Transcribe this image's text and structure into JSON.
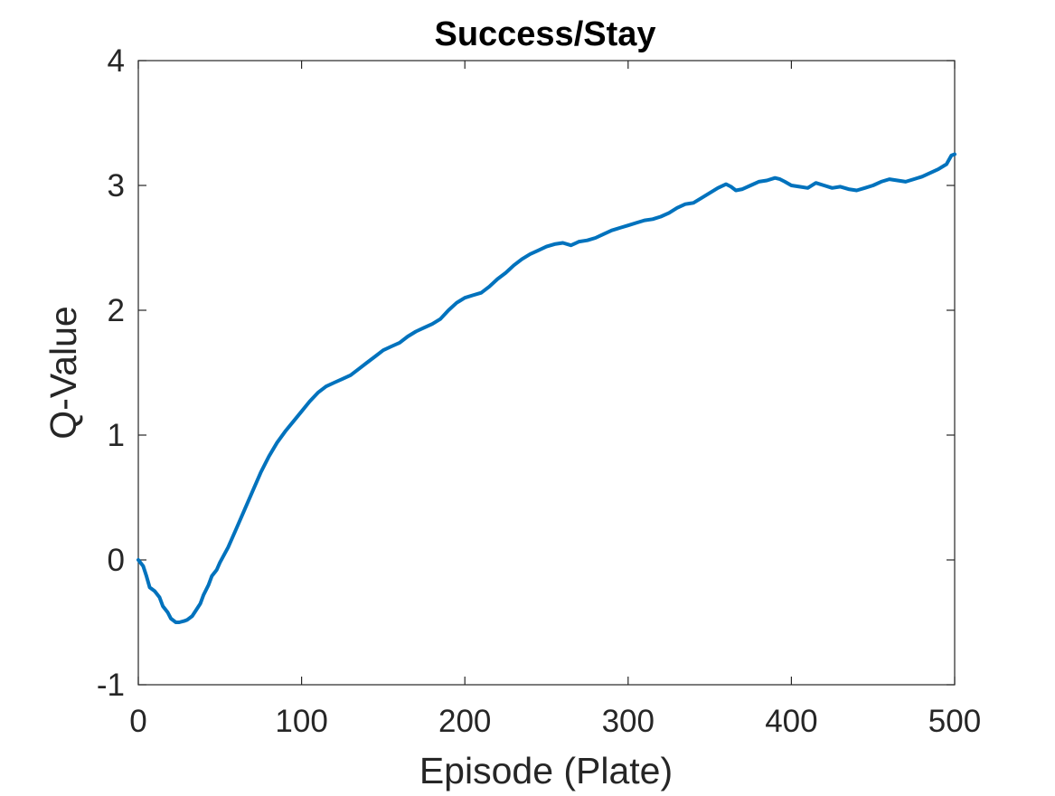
{
  "chart_data": {
    "type": "line",
    "title": "Success/Stay",
    "xlabel": "Episode (Plate)",
    "ylabel": "Q-Value",
    "xlim": [
      0,
      500
    ],
    "ylim": [
      -1,
      4
    ],
    "xticks": [
      0,
      100,
      200,
      300,
      400,
      500
    ],
    "yticks": [
      -1,
      0,
      1,
      2,
      3,
      4
    ],
    "xtick_labels": [
      "0",
      "100",
      "200",
      "300",
      "400",
      "500"
    ],
    "ytick_labels": [
      "-1",
      "0",
      "1",
      "2",
      "3",
      "4"
    ],
    "grid": false,
    "legend": "none",
    "series": [
      {
        "color": "#0072BD",
        "x": [
          0,
          3,
          5,
          7,
          10,
          13,
          15,
          18,
          20,
          23,
          25,
          28,
          30,
          33,
          35,
          38,
          40,
          43,
          45,
          48,
          50,
          55,
          60,
          65,
          70,
          75,
          80,
          85,
          90,
          95,
          100,
          105,
          110,
          115,
          120,
          125,
          130,
          135,
          140,
          145,
          150,
          155,
          160,
          165,
          170,
          175,
          180,
          185,
          190,
          195,
          200,
          205,
          210,
          215,
          220,
          225,
          230,
          235,
          240,
          245,
          250,
          255,
          260,
          265,
          270,
          275,
          280,
          285,
          290,
          295,
          300,
          305,
          310,
          315,
          320,
          325,
          330,
          335,
          340,
          345,
          350,
          355,
          360,
          363,
          366,
          370,
          375,
          380,
          385,
          390,
          393,
          396,
          400,
          405,
          410,
          415,
          420,
          425,
          430,
          435,
          440,
          445,
          450,
          455,
          460,
          465,
          470,
          475,
          480,
          485,
          490,
          495,
          498,
          500
        ],
        "y": [
          0.0,
          -0.05,
          -0.13,
          -0.22,
          -0.25,
          -0.3,
          -0.37,
          -0.42,
          -0.47,
          -0.5,
          -0.5,
          -0.49,
          -0.48,
          -0.45,
          -0.41,
          -0.35,
          -0.28,
          -0.2,
          -0.13,
          -0.08,
          -0.02,
          0.1,
          0.25,
          0.4,
          0.55,
          0.7,
          0.83,
          0.94,
          1.03,
          1.11,
          1.19,
          1.27,
          1.34,
          1.39,
          1.42,
          1.45,
          1.48,
          1.53,
          1.58,
          1.63,
          1.68,
          1.71,
          1.74,
          1.79,
          1.83,
          1.86,
          1.89,
          1.93,
          2.0,
          2.06,
          2.1,
          2.12,
          2.14,
          2.19,
          2.25,
          2.3,
          2.36,
          2.41,
          2.45,
          2.48,
          2.51,
          2.53,
          2.54,
          2.52,
          2.55,
          2.56,
          2.58,
          2.61,
          2.64,
          2.66,
          2.68,
          2.7,
          2.72,
          2.73,
          2.75,
          2.78,
          2.82,
          2.85,
          2.86,
          2.9,
          2.94,
          2.98,
          3.01,
          2.99,
          2.96,
          2.97,
          3.0,
          3.03,
          3.04,
          3.06,
          3.05,
          3.03,
          3.0,
          2.99,
          2.98,
          3.02,
          3.0,
          2.98,
          2.99,
          2.97,
          2.96,
          2.98,
          3.0,
          3.03,
          3.05,
          3.04,
          3.03,
          3.05,
          3.07,
          3.1,
          3.13,
          3.17,
          3.24,
          3.25
        ]
      }
    ]
  }
}
